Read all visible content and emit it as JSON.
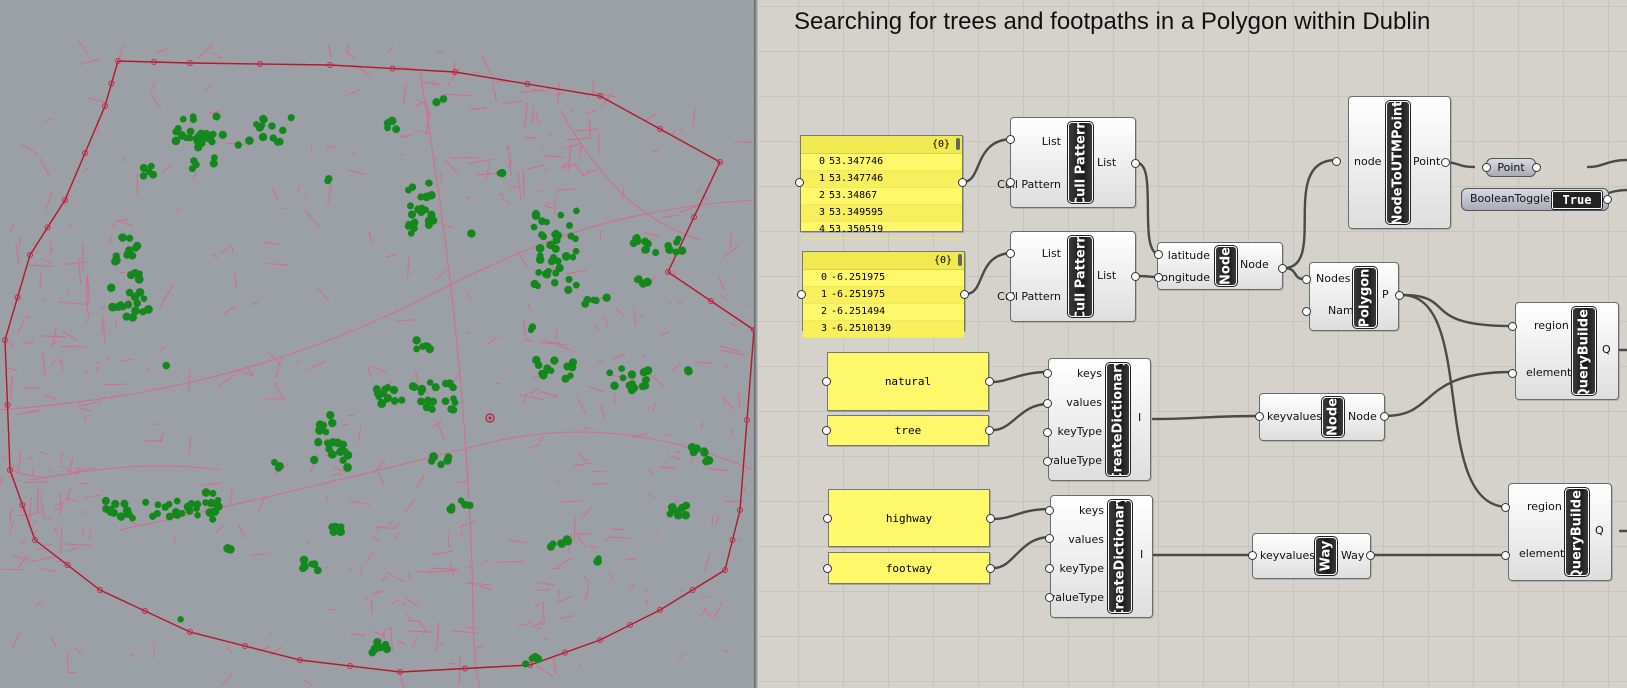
{
  "title": "Searching for trees and footpaths in a Polygon within Dublin",
  "colors": {
    "viewport_bg": "#9aa0a6",
    "boundary": "#b4182a",
    "streets": "#d86a88",
    "trees": "#14881d",
    "panel": "#fff86a",
    "canvas": "#d5d2cc"
  },
  "latitude_panel": {
    "header": "{0}",
    "rows": [
      {
        "index": "0",
        "value": "53.347746"
      },
      {
        "index": "1",
        "value": "53.347746"
      },
      {
        "index": "2",
        "value": "53.34867"
      },
      {
        "index": "3",
        "value": "53.349595"
      },
      {
        "index": "4",
        "value": "53.350519"
      }
    ]
  },
  "longitude_panel": {
    "header": "{0}",
    "rows": [
      {
        "index": "0",
        "value": "-6.251975"
      },
      {
        "index": "1",
        "value": "-6.251975"
      },
      {
        "index": "2",
        "value": "-6.251494"
      },
      {
        "index": "3",
        "value": "-6.2510139"
      }
    ]
  },
  "cull1": {
    "inputs": [
      "List",
      "Cull Pattern"
    ],
    "name": "Cull Pattern",
    "output": "List"
  },
  "cull2": {
    "inputs": [
      "List",
      "Cull Pattern"
    ],
    "name": "Cull Pattern",
    "output": "List"
  },
  "node_main": {
    "inputs": [
      "latitude",
      "longitude"
    ],
    "name": "Node",
    "output": "Node"
  },
  "node_to_utm": {
    "input": "node",
    "name": "NodeToUTMPoint",
    "output": "Point"
  },
  "point_param": {
    "label": "Point"
  },
  "boolean_toggle": {
    "label": "BooleanToggle",
    "value": "True"
  },
  "polygon": {
    "inputs": [
      "Nodes",
      "Name"
    ],
    "name": "Polygon",
    "output": "P"
  },
  "natural_panel": {
    "text": "natural"
  },
  "tree_panel": {
    "text": "tree"
  },
  "highway_panel": {
    "text": "highway"
  },
  "footway_panel": {
    "text": "footway"
  },
  "dict1": {
    "inputs": [
      "keys",
      "values",
      "keyType",
      "valueType"
    ],
    "name": "CreateDictionary",
    "output": "I"
  },
  "dict2": {
    "inputs": [
      "keys",
      "values",
      "keyType",
      "valueType"
    ],
    "name": "CreateDictionary",
    "output": "I"
  },
  "node_kv": {
    "input": "keyvalues",
    "name": "Node",
    "output": "Node"
  },
  "way_kv": {
    "input": "keyvalues",
    "name": "Way",
    "output": "Way"
  },
  "qb1": {
    "inputs": [
      "region",
      "elements"
    ],
    "name": "QueryBuilder",
    "output": "Q"
  },
  "qb2": {
    "inputs": [
      "region",
      "elements"
    ],
    "name": "QueryBuilder",
    "output": "Q"
  }
}
